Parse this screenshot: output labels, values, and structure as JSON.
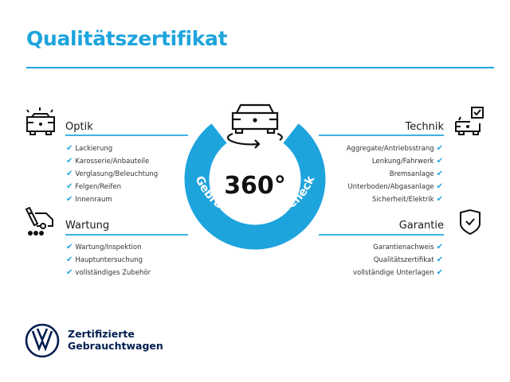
{
  "title": "Qualitätszertifikat",
  "center": {
    "value": "360°",
    "ring_text": "Gebrauchtwagen-Check",
    "color": "#1ea4dd"
  },
  "sections": {
    "optik": {
      "title": "Optik",
      "items": [
        "Lackierung",
        "Karosserie/Anbauteile",
        "Verglasung/Beleuchtung",
        "Felgen/Reifen",
        "Innenraum"
      ]
    },
    "wartung": {
      "title": "Wartung",
      "items": [
        "Wartung/Inspektion",
        "Hauptuntersuchung",
        "vollständiges Zubehör"
      ]
    },
    "technik": {
      "title": "Technik",
      "items": [
        "Aggregate/Antriebsstrang",
        "Lenkung/Fahrwerk",
        "Bremsanlage",
        "Unterboden/Abgasanlage",
        "Sicherheit/Elektrik"
      ]
    },
    "garantie": {
      "title": "Garantie",
      "items": [
        "Garantienachweis",
        "Qualitätszertifikat",
        "vollständige Unterlagen"
      ]
    }
  },
  "check_glyph": "✔",
  "brand": {
    "line1": "Zertifizierte",
    "line2": "Gebrauchtwagen",
    "color": "#001e50"
  }
}
